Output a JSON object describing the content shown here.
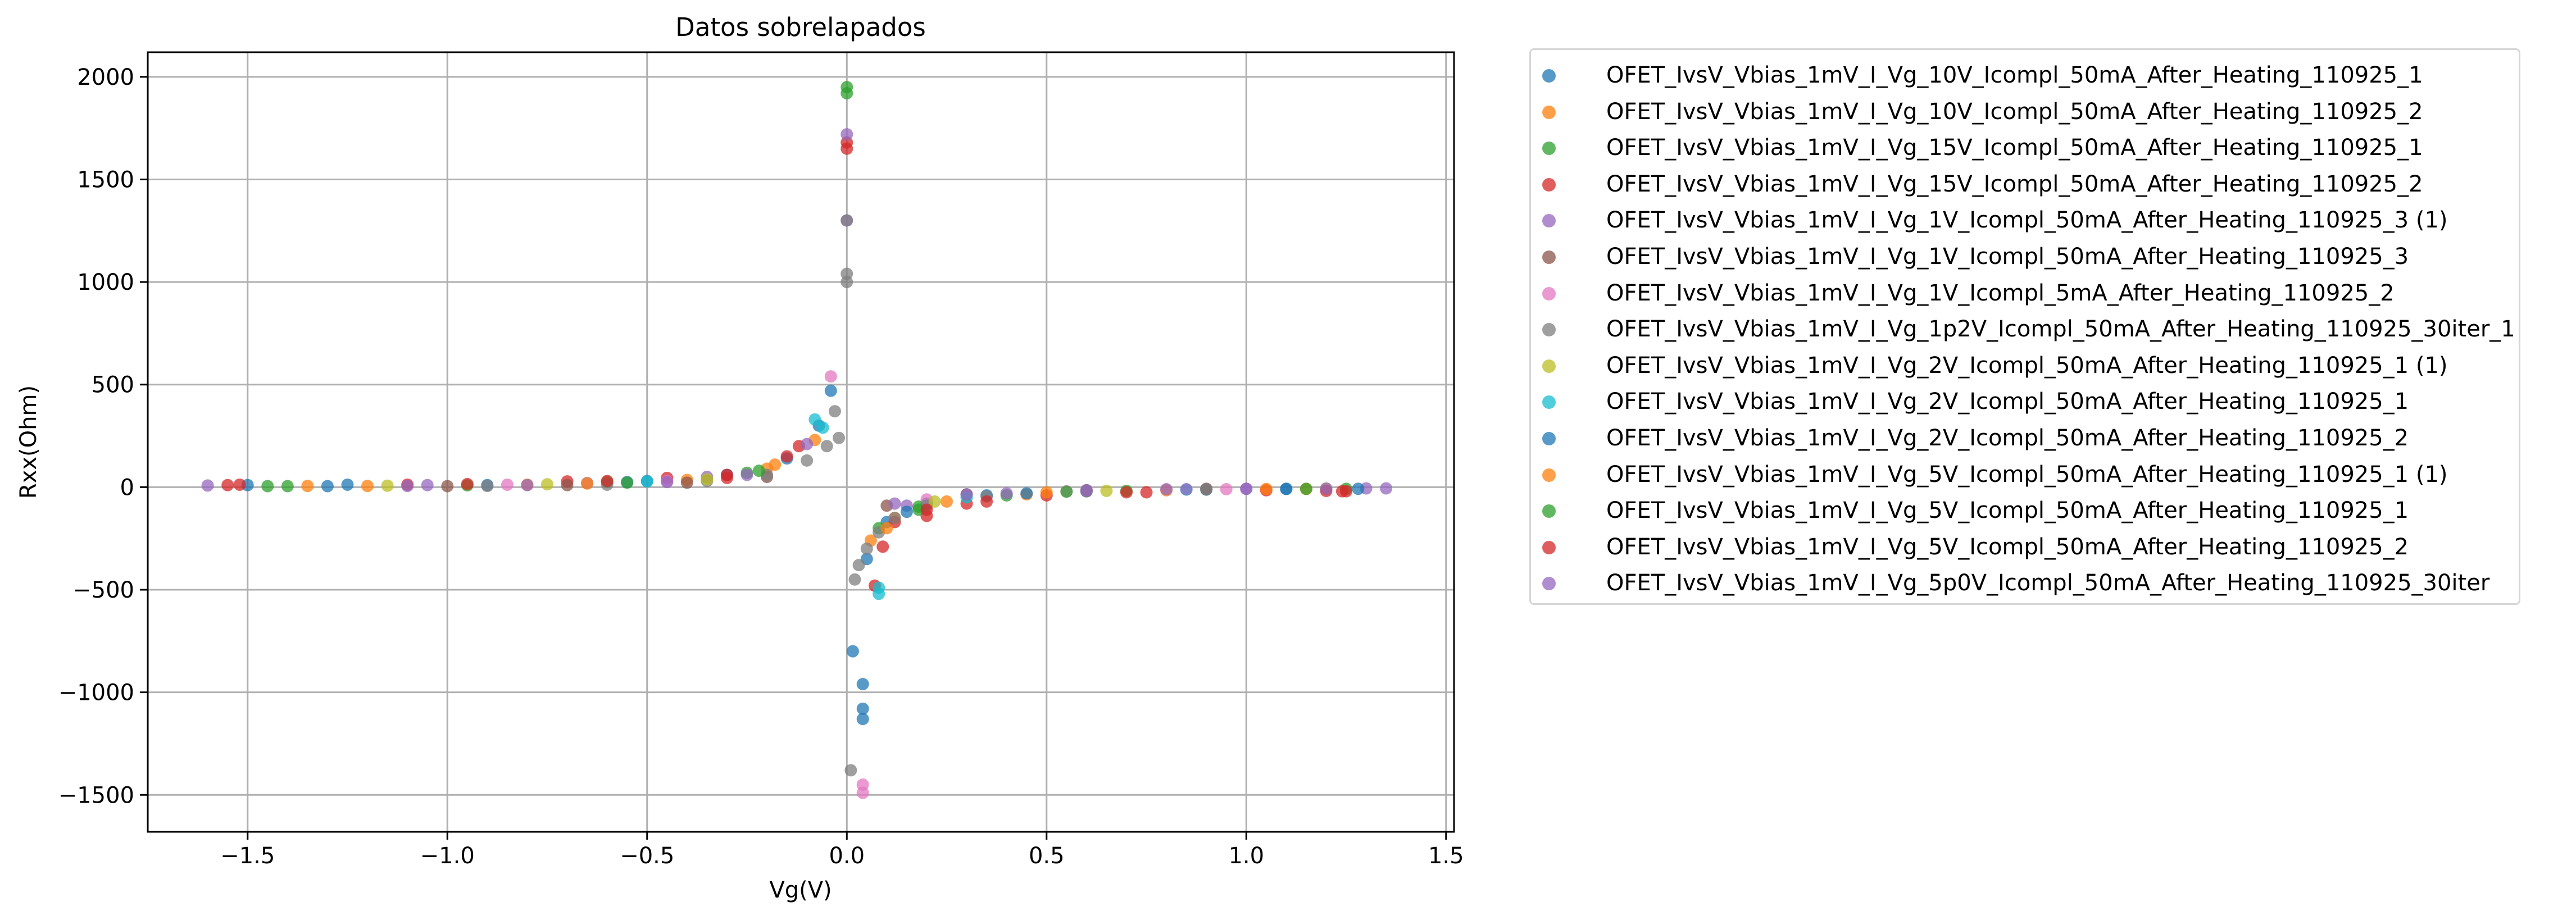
{
  "chart_data": {
    "type": "scatter",
    "title": "Datos sobrelapados",
    "xlabel": "Vg(V)",
    "ylabel": "Rxx(Ohm)",
    "xlim": [
      -1.75,
      1.52
    ],
    "ylim": [
      -1680,
      2120
    ],
    "xticks": [
      -1.5,
      -1.0,
      -0.5,
      0.0,
      0.5,
      1.0,
      1.5
    ],
    "xtick_labels": [
      "−1.5",
      "−1.0",
      "−0.5",
      "0.0",
      "0.5",
      "1.0",
      "1.5"
    ],
    "yticks": [
      -1500,
      -1000,
      -500,
      0,
      500,
      1000,
      1500,
      2000
    ],
    "ytick_labels": [
      "−1500",
      "−1000",
      "−500",
      "0",
      "500",
      "1000",
      "1500",
      "2000"
    ],
    "grid": true,
    "legend_position": "outside-right",
    "series": [
      {
        "name": "OFET_IvsV_Vbias_1mV_I_Vg_10V_Icompl_50mA_After_Heating_110925_1",
        "color": "#1f77b4",
        "points": [
          [
            -1.3,
            5
          ],
          [
            -0.9,
            10
          ],
          [
            -0.5,
            30
          ],
          [
            -0.3,
            60
          ],
          [
            -0.15,
            140
          ],
          [
            -0.07,
            300
          ],
          [
            0.015,
            -800
          ],
          [
            0.05,
            -350
          ],
          [
            0.1,
            -170
          ],
          [
            0.2,
            -80
          ],
          [
            0.35,
            -40
          ],
          [
            0.6,
            -20
          ],
          [
            0.9,
            -12
          ],
          [
            1.1,
            -8
          ]
        ]
      },
      {
        "name": "OFET_IvsV_Vbias_1mV_I_Vg_10V_Icompl_50mA_After_Heating_110925_2",
        "color": "#ff7f0e",
        "points": [
          [
            -1.2,
            6
          ],
          [
            -0.8,
            12
          ],
          [
            -0.4,
            35
          ],
          [
            -0.2,
            90
          ],
          [
            -0.08,
            230
          ],
          [
            0.06,
            -260
          ],
          [
            0.12,
            -150
          ],
          [
            0.25,
            -70
          ],
          [
            0.45,
            -35
          ],
          [
            0.8,
            -15
          ],
          [
            1.15,
            -9
          ]
        ]
      },
      {
        "name": "OFET_IvsV_Vbias_1mV_I_Vg_15V_Icompl_50mA_After_Heating_110925_1",
        "color": "#2ca02c",
        "points": [
          [
            0.0,
            1950
          ],
          [
            0.0,
            1920
          ],
          [
            -1.4,
            5
          ],
          [
            -0.95,
            9
          ],
          [
            -0.6,
            25
          ],
          [
            -0.25,
            70
          ],
          [
            0.08,
            -200
          ],
          [
            0.18,
            -95
          ],
          [
            0.4,
            -40
          ],
          [
            0.7,
            -18
          ],
          [
            1.25,
            -8
          ]
        ]
      },
      {
        "name": "OFET_IvsV_Vbias_1mV_I_Vg_15V_Icompl_50mA_After_Heating_110925_2",
        "color": "#d62728",
        "points": [
          [
            0.0,
            1680
          ],
          [
            0.0,
            1650
          ],
          [
            -1.55,
            10
          ],
          [
            -1.1,
            12
          ],
          [
            -0.7,
            28
          ],
          [
            -0.45,
            45
          ],
          [
            -0.3,
            60
          ],
          [
            -0.12,
            200
          ],
          [
            0.07,
            -480
          ],
          [
            0.12,
            -170
          ],
          [
            0.2,
            -140
          ],
          [
            0.3,
            -80
          ],
          [
            0.5,
            -40
          ],
          [
            0.75,
            -25
          ],
          [
            1.05,
            -15
          ],
          [
            1.25,
            -20
          ]
        ]
      },
      {
        "name": "OFET_IvsV_Vbias_1mV_I_Vg_1V_Icompl_50mA_After_Heating_110925_3 (1)",
        "color": "#9467bd",
        "points": [
          [
            0.0,
            1720
          ],
          [
            0.0,
            1300
          ],
          [
            -1.6,
            8
          ],
          [
            -1.05,
            10
          ],
          [
            -0.65,
            20
          ],
          [
            -0.35,
            50
          ],
          [
            -0.1,
            210
          ],
          [
            0.15,
            -90
          ],
          [
            0.4,
            -30
          ],
          [
            0.8,
            -10
          ],
          [
            1.0,
            -8
          ],
          [
            1.3,
            -6
          ]
        ]
      },
      {
        "name": "OFET_IvsV_Vbias_1mV_I_Vg_1V_Icompl_50mA_After_Heating_110925_3",
        "color": "#8c564b",
        "points": [
          [
            -1.0,
            5
          ],
          [
            -0.7,
            10
          ],
          [
            -0.4,
            22
          ],
          [
            -0.2,
            50
          ],
          [
            0.1,
            -90
          ],
          [
            0.3,
            -35
          ],
          [
            0.6,
            -15
          ],
          [
            0.9,
            -8
          ]
        ]
      },
      {
        "name": "OFET_IvsV_Vbias_1mV_I_Vg_1V_Icompl_5mA_After_Heating_110925_2",
        "color": "#e377c2",
        "points": [
          [
            -0.04,
            540
          ],
          [
            0.04,
            -1450
          ],
          [
            0.04,
            -1490
          ],
          [
            -0.85,
            12
          ],
          [
            -0.45,
            30
          ],
          [
            0.2,
            -60
          ],
          [
            0.55,
            -20
          ],
          [
            0.95,
            -10
          ]
        ]
      },
      {
        "name": "OFET_IvsV_Vbias_1mV_I_Vg_1p2V_Icompl_50mA_After_Heating_110925_30iter_1",
        "color": "#7f7f7f",
        "points": [
          [
            0.0,
            1300
          ],
          [
            0.0,
            1040
          ],
          [
            0.0,
            1000
          ],
          [
            -0.03,
            370
          ],
          [
            -0.02,
            240
          ],
          [
            -0.05,
            200
          ],
          [
            -0.1,
            130
          ],
          [
            -0.2,
            60
          ],
          [
            -0.35,
            30
          ],
          [
            -0.6,
            12
          ],
          [
            -0.9,
            6
          ],
          [
            0.01,
            -1380
          ],
          [
            0.02,
            -450
          ],
          [
            0.03,
            -380
          ],
          [
            0.05,
            -300
          ],
          [
            0.08,
            -220
          ],
          [
            0.12,
            -150
          ],
          [
            0.2,
            -90
          ],
          [
            0.35,
            -45
          ],
          [
            0.6,
            -20
          ],
          [
            0.9,
            -10
          ]
        ]
      },
      {
        "name": "OFET_IvsV_Vbias_1mV_I_Vg_2V_Icompl_50mA_After_Heating_110925_1 (1)",
        "color": "#bcbd22",
        "points": [
          [
            -1.15,
            7
          ],
          [
            -0.75,
            14
          ],
          [
            -0.35,
            38
          ],
          [
            0.22,
            -70
          ],
          [
            0.65,
            -18
          ],
          [
            1.2,
            -7
          ]
        ]
      },
      {
        "name": "OFET_IvsV_Vbias_1mV_I_Vg_2V_Icompl_50mA_After_Heating_110925_1",
        "color": "#17becf",
        "points": [
          [
            -0.08,
            330
          ],
          [
            -0.06,
            290
          ],
          [
            0.08,
            -520
          ],
          [
            0.08,
            -490
          ],
          [
            -0.5,
            28
          ],
          [
            0.3,
            -50
          ],
          [
            0.85,
            -12
          ]
        ]
      },
      {
        "name": "OFET_IvsV_Vbias_1mV_I_Vg_2V_Icompl_50mA_After_Heating_110925_2",
        "color": "#1f77b4",
        "points": [
          [
            0.04,
            -960
          ],
          [
            0.04,
            -1080
          ],
          [
            0.04,
            -1130
          ],
          [
            -0.04,
            470
          ],
          [
            -1.5,
            10
          ],
          [
            -1.25,
            12
          ],
          [
            -0.55,
            25
          ],
          [
            0.15,
            -120
          ],
          [
            0.45,
            -30
          ],
          [
            1.1,
            -9
          ],
          [
            1.28,
            -8
          ]
        ]
      },
      {
        "name": "OFET_IvsV_Vbias_1mV_I_Vg_5V_Icompl_50mA_After_Heating_110925_1 (1)",
        "color": "#ff7f0e",
        "points": [
          [
            -1.35,
            6
          ],
          [
            -0.65,
            18
          ],
          [
            -0.18,
            110
          ],
          [
            0.1,
            -200
          ],
          [
            0.5,
            -25
          ],
          [
            1.05,
            -9
          ]
        ]
      },
      {
        "name": "OFET_IvsV_Vbias_1mV_I_Vg_5V_Icompl_50mA_After_Heating_110925_1",
        "color": "#2ca02c",
        "points": [
          [
            -1.45,
            5
          ],
          [
            -0.55,
            22
          ],
          [
            -0.22,
            80
          ],
          [
            0.18,
            -110
          ],
          [
            0.55,
            -22
          ],
          [
            1.15,
            -8
          ]
        ]
      },
      {
        "name": "OFET_IvsV_Vbias_1mV_I_Vg_5V_Icompl_50mA_After_Heating_110925_2",
        "color": "#d62728",
        "points": [
          [
            -1.52,
            12
          ],
          [
            -0.95,
            15
          ],
          [
            -0.6,
            30
          ],
          [
            -0.3,
            45
          ],
          [
            -0.15,
            150
          ],
          [
            0.09,
            -290
          ],
          [
            0.2,
            -110
          ],
          [
            0.35,
            -70
          ],
          [
            0.7,
            -25
          ],
          [
            1.2,
            -18
          ],
          [
            1.24,
            -20
          ]
        ]
      },
      {
        "name": "OFET_IvsV_Vbias_1mV_I_Vg_5p0V_Icompl_50mA_After_Heating_110925_30iter",
        "color": "#9467bd",
        "points": [
          [
            -1.1,
            6
          ],
          [
            -0.8,
            10
          ],
          [
            -0.45,
            25
          ],
          [
            -0.25,
            60
          ],
          [
            0.12,
            -80
          ],
          [
            0.3,
            -35
          ],
          [
            0.6,
            -15
          ],
          [
            0.85,
            -10
          ],
          [
            1.0,
            -8
          ],
          [
            1.2,
            -7
          ],
          [
            1.35,
            -6
          ]
        ]
      }
    ]
  }
}
